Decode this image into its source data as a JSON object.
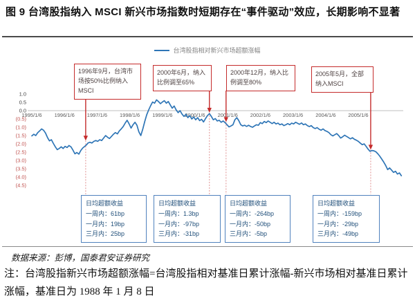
{
  "figure": {
    "title": "图 9 台湾股指纳入 MSCI 新兴市场指数时短期存在“事件驱动”效应，长期影响不显著",
    "source": "数据来源：彭博，国泰君安证券研究",
    "note": "注：台湾股指新兴市场超额涨幅=台湾股指相对基准日累计涨幅-新兴市场相对基准日累计涨幅，基准日为 1988 年 1 月 8 日"
  },
  "colors": {
    "series_line": "#2e75b6",
    "axis_line": "#bfbfbf",
    "tick_positive": "#404040",
    "tick_negative": "#c0504d",
    "x_label": "#595959",
    "event_red": "#c42a2a",
    "event_dash": "#e09090",
    "stat_blue_border": "#4f81bd",
    "stat_blue_text": "#1f4e79",
    "legend_text": "#848484"
  },
  "chart_data": {
    "type": "line",
    "title": "",
    "xlabel": "",
    "ylabel": "",
    "legend_position": "top",
    "grid": "zero-line-only",
    "ylim": [
      -4.5,
      1.0
    ],
    "x_axis": {
      "labels": [
        "1995/1/6",
        "1996/1/6",
        "1997/1/6",
        "1998/1/6",
        "1999/1/6",
        "2000/1/6",
        "2001/1/6",
        "2002/1/6",
        "2003/1/6",
        "2004/1/6",
        "2005/1/6"
      ]
    },
    "y_axis": {
      "labels": [
        "1.0",
        "0.5",
        "0.0",
        "(0.5)",
        "(1.0)",
        "(1.5)",
        "(2.0)",
        "(2.5)",
        "(3.0)",
        "(3.5)",
        "(4.0)",
        "(4.5)"
      ],
      "values": [
        1.0,
        0.5,
        0.0,
        -0.5,
        -1.0,
        -1.5,
        -2.0,
        -2.5,
        -3.0,
        -3.5,
        -4.0,
        -4.5
      ]
    },
    "series": [
      {
        "name": "台湾股指相对新兴市场超额涨幅",
        "color": "#2e75b6",
        "points": [
          [
            1995.0,
            -1.52
          ],
          [
            1995.06,
            -1.42
          ],
          [
            1995.12,
            -1.5
          ],
          [
            1995.18,
            -1.33
          ],
          [
            1995.24,
            -1.22
          ],
          [
            1995.3,
            -1.1
          ],
          [
            1995.36,
            -1.18
          ],
          [
            1995.42,
            -1.35
          ],
          [
            1995.48,
            -1.62
          ],
          [
            1995.54,
            -1.82
          ],
          [
            1995.6,
            -1.75
          ],
          [
            1995.66,
            -1.98
          ],
          [
            1995.72,
            -2.18
          ],
          [
            1995.78,
            -2.35
          ],
          [
            1995.84,
            -2.28
          ],
          [
            1995.9,
            -2.18
          ],
          [
            1995.96,
            -2.28
          ],
          [
            1996.02,
            -2.15
          ],
          [
            1996.08,
            -2.22
          ],
          [
            1996.14,
            -2.1
          ],
          [
            1996.2,
            -2.18
          ],
          [
            1996.26,
            -2.38
          ],
          [
            1996.32,
            -2.6
          ],
          [
            1996.38,
            -2.52
          ],
          [
            1996.44,
            -2.62
          ],
          [
            1996.5,
            -2.4
          ],
          [
            1996.56,
            -2.25
          ],
          [
            1996.62,
            -2.15
          ],
          [
            1996.68,
            -2.05
          ],
          [
            1996.72,
            -1.95
          ],
          [
            1996.78,
            -1.9
          ],
          [
            1996.84,
            -1.95
          ],
          [
            1996.9,
            -1.85
          ],
          [
            1996.96,
            -1.8
          ],
          [
            1997.02,
            -1.85
          ],
          [
            1997.08,
            -1.75
          ],
          [
            1997.14,
            -1.8
          ],
          [
            1997.2,
            -1.65
          ],
          [
            1997.26,
            -1.5
          ],
          [
            1997.32,
            -1.6
          ],
          [
            1997.38,
            -1.68
          ],
          [
            1997.44,
            -1.55
          ],
          [
            1997.5,
            -1.42
          ],
          [
            1997.56,
            -1.32
          ],
          [
            1997.62,
            -1.4
          ],
          [
            1997.68,
            -1.22
          ],
          [
            1997.74,
            -1.1
          ],
          [
            1997.8,
            -0.95
          ],
          [
            1997.86,
            -0.75
          ],
          [
            1997.92,
            -0.58
          ],
          [
            1997.98,
            -0.8
          ],
          [
            1998.04,
            -1.05
          ],
          [
            1998.1,
            -0.85
          ],
          [
            1998.16,
            -0.7
          ],
          [
            1998.22,
            -0.88
          ],
          [
            1998.28,
            -1.28
          ],
          [
            1998.34,
            -1.5
          ],
          [
            1998.4,
            -1.1
          ],
          [
            1998.46,
            -0.65
          ],
          [
            1998.52,
            -0.25
          ],
          [
            1998.58,
            0.05
          ],
          [
            1998.64,
            0.3
          ],
          [
            1998.7,
            0.52
          ],
          [
            1998.76,
            0.45
          ],
          [
            1998.82,
            0.65
          ],
          [
            1998.88,
            0.55
          ],
          [
            1998.94,
            0.42
          ],
          [
            1999.0,
            0.52
          ],
          [
            1999.06,
            0.6
          ],
          [
            1999.12,
            0.45
          ],
          [
            1999.18,
            0.55
          ],
          [
            1999.24,
            0.35
          ],
          [
            1999.3,
            0.15
          ],
          [
            1999.36,
            0.28
          ],
          [
            1999.42,
            0.05
          ],
          [
            1999.48,
            -0.12
          ],
          [
            1999.54,
            0.0
          ],
          [
            1999.6,
            -0.2
          ],
          [
            1999.66,
            -0.35
          ],
          [
            1999.72,
            -0.22
          ],
          [
            1999.78,
            -0.42
          ],
          [
            1999.84,
            -0.3
          ],
          [
            1999.9,
            -0.5
          ],
          [
            1999.96,
            -0.38
          ],
          [
            2000.02,
            -0.55
          ],
          [
            2000.08,
            -0.42
          ],
          [
            2000.14,
            -0.6
          ],
          [
            2000.2,
            -0.52
          ],
          [
            2000.26,
            -0.68
          ],
          [
            2000.32,
            -0.48
          ],
          [
            2000.38,
            -0.3
          ],
          [
            2000.44,
            -0.18
          ],
          [
            2000.5,
            -0.35
          ],
          [
            2000.56,
            -0.55
          ],
          [
            2000.62,
            -0.48
          ],
          [
            2000.68,
            -0.62
          ],
          [
            2000.74,
            -0.58
          ],
          [
            2000.8,
            -0.7
          ],
          [
            2000.86,
            -0.62
          ],
          [
            2000.92,
            -0.72
          ],
          [
            2000.98,
            -0.85
          ],
          [
            2001.04,
            -0.98
          ],
          [
            2001.1,
            -0.92
          ],
          [
            2001.16,
            -0.85
          ],
          [
            2001.22,
            -0.55
          ],
          [
            2001.28,
            -0.42
          ],
          [
            2001.34,
            -0.6
          ],
          [
            2001.4,
            -0.85
          ],
          [
            2001.46,
            -0.92
          ],
          [
            2001.52,
            -0.88
          ],
          [
            2001.58,
            -0.95
          ],
          [
            2001.64,
            -0.88
          ],
          [
            2001.7,
            -0.95
          ],
          [
            2001.76,
            -1.0
          ],
          [
            2001.82,
            -0.92
          ],
          [
            2001.88,
            -0.85
          ],
          [
            2001.94,
            -0.88
          ],
          [
            2002.0,
            -0.72
          ],
          [
            2002.06,
            -0.78
          ],
          [
            2002.12,
            -0.65
          ],
          [
            2002.18,
            -0.72
          ],
          [
            2002.24,
            -0.62
          ],
          [
            2002.3,
            -0.7
          ],
          [
            2002.36,
            -0.78
          ],
          [
            2002.42,
            -0.7
          ],
          [
            2002.48,
            -0.8
          ],
          [
            2002.54,
            -0.75
          ],
          [
            2002.6,
            -0.85
          ],
          [
            2002.66,
            -0.8
          ],
          [
            2002.72,
            -0.9
          ],
          [
            2002.78,
            -0.85
          ],
          [
            2002.84,
            -0.78
          ],
          [
            2002.9,
            -0.85
          ],
          [
            2002.96,
            -0.75
          ],
          [
            2003.02,
            -0.8
          ],
          [
            2003.08,
            -0.7
          ],
          [
            2003.14,
            -0.76
          ],
          [
            2003.2,
            -0.82
          ],
          [
            2003.26,
            -0.74
          ],
          [
            2003.32,
            -0.85
          ],
          [
            2003.38,
            -0.8
          ],
          [
            2003.44,
            -0.9
          ],
          [
            2003.5,
            -0.96
          ],
          [
            2003.56,
            -0.9
          ],
          [
            2003.62,
            -1.02
          ],
          [
            2003.68,
            -1.08
          ],
          [
            2003.74,
            -1.02
          ],
          [
            2003.8,
            -1.12
          ],
          [
            2003.86,
            -1.18
          ],
          [
            2003.92,
            -1.1
          ],
          [
            2003.98,
            -1.2
          ],
          [
            2004.04,
            -1.25
          ],
          [
            2004.1,
            -1.32
          ],
          [
            2004.16,
            -1.45
          ],
          [
            2004.22,
            -1.52
          ],
          [
            2004.28,
            -1.45
          ],
          [
            2004.34,
            -1.38
          ],
          [
            2004.4,
            -1.5
          ],
          [
            2004.46,
            -1.65
          ],
          [
            2004.52,
            -1.58
          ],
          [
            2004.58,
            -1.48
          ],
          [
            2004.64,
            -1.55
          ],
          [
            2004.7,
            -1.62
          ],
          [
            2004.76,
            -1.7
          ],
          [
            2004.82,
            -1.63
          ],
          [
            2004.88,
            -1.72
          ],
          [
            2004.94,
            -1.78
          ],
          [
            2005.0,
            -1.85
          ],
          [
            2005.06,
            -1.95
          ],
          [
            2005.12,
            -2.05
          ],
          [
            2005.18,
            -2.0
          ],
          [
            2005.24,
            -2.15
          ],
          [
            2005.3,
            -2.32
          ],
          [
            2005.36,
            -2.45
          ],
          [
            2005.42,
            -2.4
          ],
          [
            2005.48,
            -2.42
          ],
          [
            2005.54,
            -2.48
          ],
          [
            2005.6,
            -2.6
          ],
          [
            2005.66,
            -2.75
          ],
          [
            2005.72,
            -2.92
          ],
          [
            2005.78,
            -3.1
          ],
          [
            2005.84,
            -3.3
          ],
          [
            2005.9,
            -3.55
          ],
          [
            2005.96,
            -3.45
          ],
          [
            2006.02,
            -3.58
          ],
          [
            2006.08,
            -3.72
          ],
          [
            2006.14,
            -3.65
          ],
          [
            2006.2,
            -3.82
          ],
          [
            2006.26,
            -3.75
          ],
          [
            2006.32,
            -3.92
          ]
        ]
      }
    ],
    "events": [
      {
        "text": "1996年9月，台湾市场按50%比例纳入MSCI",
        "anchor_year": 1996.65,
        "anchor_value": -1.8
      },
      {
        "text": "2000年6月，纳入比例调至65%",
        "anchor_year": 2000.44,
        "anchor_value": -0.12
      },
      {
        "text": "2000年12月，纳入比例调至80%",
        "anchor_year": 2000.95,
        "anchor_value": -0.68
      },
      {
        "text": "2005年5月，全部纳入MSCI",
        "anchor_year": 2005.38,
        "anchor_value": -2.35
      }
    ]
  },
  "stat_boxes": [
    {
      "title": "日均超额收益",
      "lines": [
        "一周内：61bp",
        "一月内：19bp",
        "三月内：25bp"
      ]
    },
    {
      "title": "日均超额收益",
      "lines": [
        "一周内：1.3bp",
        "一月内：-97bp",
        "三月内：-31bp"
      ]
    },
    {
      "title": "日均超额收益",
      "lines": [
        "一周内：-264bp",
        "一月内：-50bp",
        "三月内：-5bp"
      ]
    },
    {
      "title": "日均超额收益",
      "lines": [
        "一周内：-159bp",
        "一月内：-29bp",
        "三月内：-49bp"
      ]
    }
  ]
}
